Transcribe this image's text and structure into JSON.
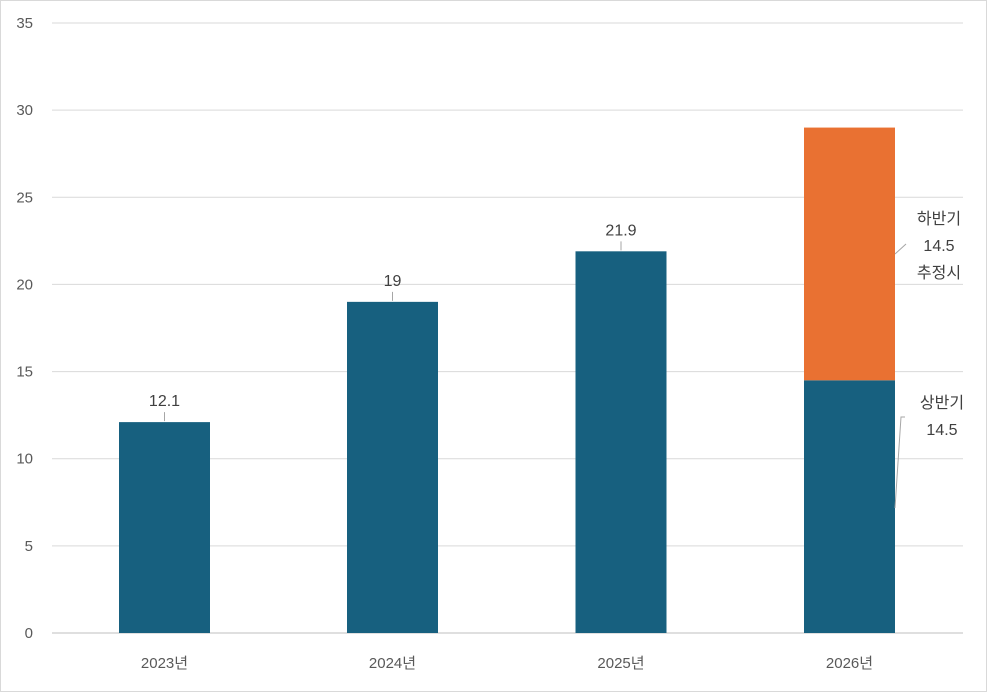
{
  "chart_data": {
    "type": "bar",
    "stacked": true,
    "categories": [
      "2023년",
      "2024년",
      "2025년",
      "2026년"
    ],
    "series": [
      {
        "name": "상반기",
        "color": "#17607f",
        "values": [
          12.1,
          19,
          21.9,
          14.5
        ]
      },
      {
        "name": "하반기 추정시",
        "color": "#e97132",
        "values": [
          0,
          0,
          0,
          14.5
        ]
      }
    ],
    "data_labels": [
      "12.1",
      "19",
      "21.9"
    ],
    "annotations": [
      {
        "label": "하반기",
        "value": "14.5",
        "note": "추정시"
      },
      {
        "label": "상반기",
        "value": "14.5"
      }
    ],
    "yticks": [
      "0",
      "5",
      "10",
      "15",
      "20",
      "25",
      "30",
      "35"
    ],
    "ylim": [
      0,
      35
    ],
    "grid": true,
    "legend": "none",
    "title": "",
    "xlabel": "",
    "ylabel": ""
  }
}
